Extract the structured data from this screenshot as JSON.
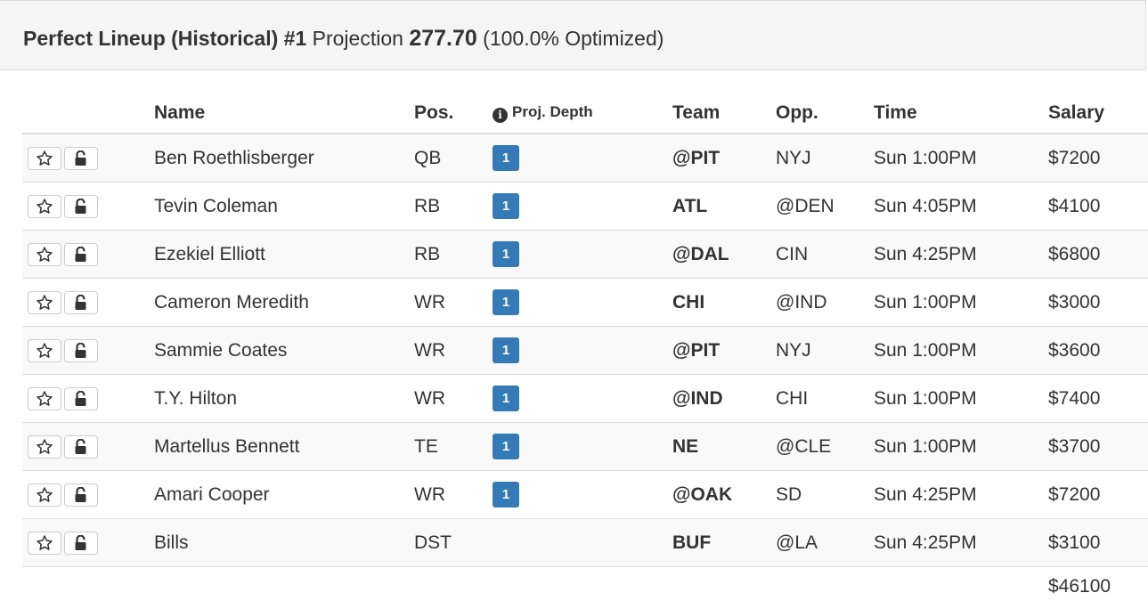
{
  "header": {
    "title": "Perfect Lineup (Historical) #1",
    "projection_label": "Projection",
    "projection_value": "277.70",
    "optimized": "(100.0% Optimized)"
  },
  "columns": {
    "name": "Name",
    "pos": "Pos.",
    "depth": "Proj. Depth",
    "team": "Team",
    "opp": "Opp.",
    "time": "Time",
    "salary": "Salary"
  },
  "rows": [
    {
      "name": "Ben Roethlisberger",
      "pos": "QB",
      "depth": "1",
      "team": "@PIT",
      "opp": "NYJ",
      "time": "Sun 1:00PM",
      "salary": "$7200"
    },
    {
      "name": "Tevin Coleman",
      "pos": "RB",
      "depth": "1",
      "team": "ATL",
      "opp": "@DEN",
      "time": "Sun 4:05PM",
      "salary": "$4100"
    },
    {
      "name": "Ezekiel Elliott",
      "pos": "RB",
      "depth": "1",
      "team": "@DAL",
      "opp": "CIN",
      "time": "Sun 4:25PM",
      "salary": "$6800"
    },
    {
      "name": "Cameron Meredith",
      "pos": "WR",
      "depth": "1",
      "team": "CHI",
      "opp": "@IND",
      "time": "Sun 1:00PM",
      "salary": "$3000"
    },
    {
      "name": "Sammie Coates",
      "pos": "WR",
      "depth": "1",
      "team": "@PIT",
      "opp": "NYJ",
      "time": "Sun 1:00PM",
      "salary": "$3600"
    },
    {
      "name": "T.Y. Hilton",
      "pos": "WR",
      "depth": "1",
      "team": "@IND",
      "opp": "CHI",
      "time": "Sun 1:00PM",
      "salary": "$7400"
    },
    {
      "name": "Martellus Bennett",
      "pos": "TE",
      "depth": "1",
      "team": "NE",
      "opp": "@CLE",
      "time": "Sun 1:00PM",
      "salary": "$3700"
    },
    {
      "name": "Amari Cooper",
      "pos": "WR",
      "depth": "1",
      "team": "@OAK",
      "opp": "SD",
      "time": "Sun 4:25PM",
      "salary": "$7200"
    },
    {
      "name": "Bills",
      "pos": "DST",
      "depth": "",
      "team": "BUF",
      "opp": "@LA",
      "time": "Sun 4:25PM",
      "salary": "$3100"
    }
  ],
  "total_salary": "$46100",
  "icons": {
    "favorite": "star-outline-icon",
    "lock": "unlock-icon",
    "info": "info-circle-icon"
  },
  "colors": {
    "badge": "#337ab7",
    "header_bg": "#f5f5f5",
    "stripe": "#f9f9f9"
  }
}
